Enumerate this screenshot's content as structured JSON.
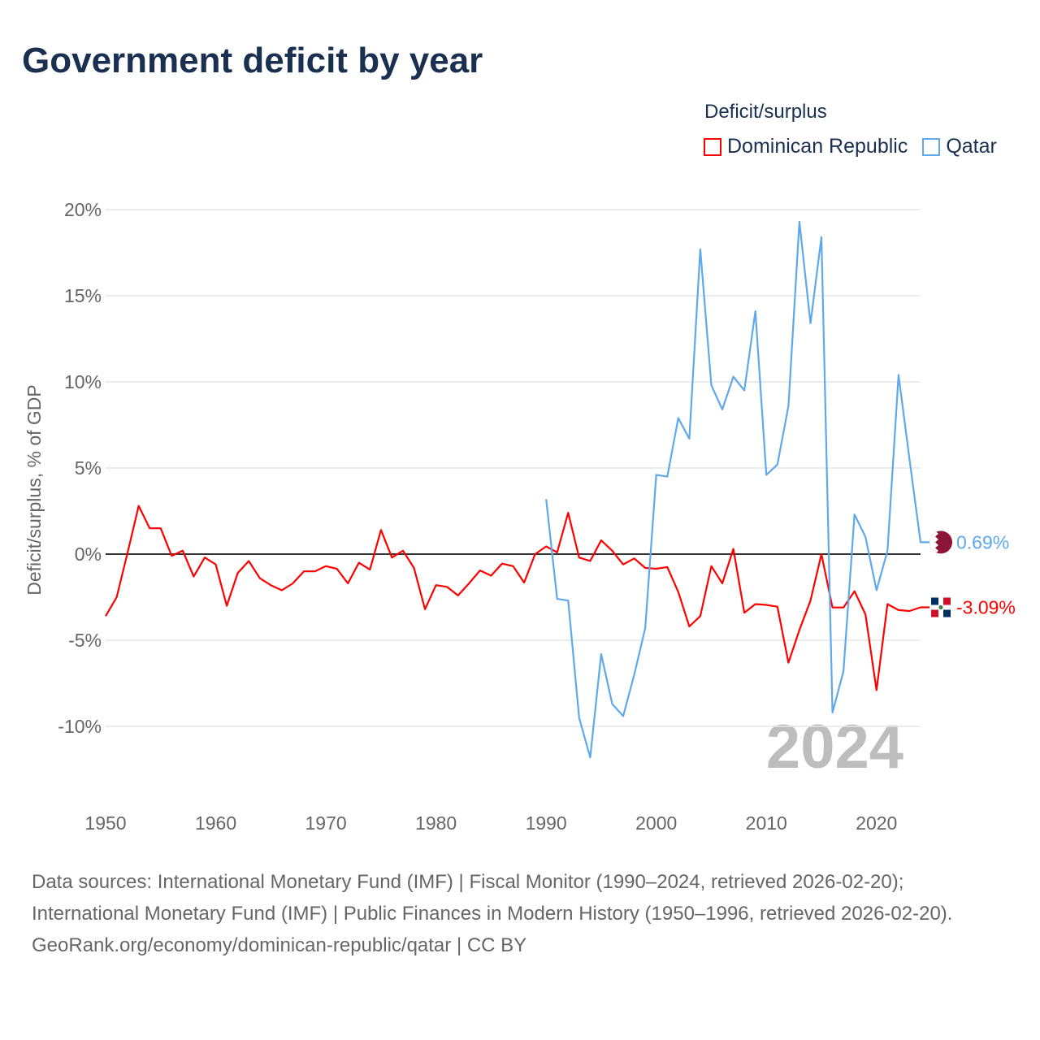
{
  "title": "Government deficit by year",
  "legend": {
    "title": "Deficit/surplus"
  },
  "colors": {
    "dominican_republic": "#ff0000",
    "qatar": "#5ea8ec",
    "zero_line": "#333333",
    "grid": "#e6e6e6"
  },
  "year_watermark": "2024",
  "chart_data": {
    "type": "line",
    "title": "Government deficit by year",
    "xlabel": "",
    "ylabel": "Deficit/surplus, % of GDP",
    "xlim": [
      1950,
      2024
    ],
    "ylim": [
      -12,
      20
    ],
    "x_ticks": [
      1950,
      1960,
      1970,
      1980,
      1990,
      2000,
      2010,
      2020
    ],
    "x_tick_labels": [
      "1950",
      "1960",
      "1970",
      "1980",
      "1990",
      "2000",
      "2010",
      "2020"
    ],
    "y_ticks": [
      20,
      15,
      10,
      5,
      0,
      -5,
      -10
    ],
    "y_tick_labels": [
      "20%",
      "15%",
      "10%",
      "5%",
      "0%",
      "-5%",
      "-10%"
    ],
    "grid": true,
    "legend_position": "top-right",
    "series": [
      {
        "name": "Dominican Republic",
        "color": "#ff0000",
        "start_year": 1950,
        "end_label": "-3.09%",
        "values": [
          -3.6,
          -2.5,
          0.1,
          2.8,
          1.5,
          1.5,
          -0.1,
          0.2,
          -1.3,
          -0.2,
          -0.6,
          -3.0,
          -1.1,
          -0.4,
          -1.4,
          -1.8,
          -2.1,
          -1.7,
          -1.0,
          -1.0,
          -0.7,
          -0.85,
          -1.7,
          -0.5,
          -0.9,
          1.4,
          -0.2,
          0.2,
          -0.8,
          -3.2,
          -1.8,
          -1.9,
          -2.4,
          -1.7,
          -0.95,
          -1.25,
          -0.55,
          -0.7,
          -1.65,
          0.0,
          0.45,
          0.1,
          2.4,
          -0.2,
          -0.4,
          0.8,
          0.2,
          -0.6,
          -0.25,
          -0.8,
          -0.85,
          -0.75,
          -2.2,
          -4.2,
          -3.6,
          -0.7,
          -1.7,
          0.3,
          -3.4,
          -2.9,
          -2.95,
          -3.05,
          -6.3,
          -4.4,
          -2.7,
          0.0,
          -3.1,
          -3.1,
          -2.15,
          -3.5,
          -7.9,
          -2.9,
          -3.25,
          -3.3,
          -3.09
        ]
      },
      {
        "name": "Qatar",
        "color": "#5ea8ec",
        "start_year": 1990,
        "end_label": "0.69%",
        "values": [
          3.2,
          -2.6,
          -2.7,
          -9.5,
          -11.8,
          -5.8,
          -8.7,
          -9.4,
          -7.0,
          -4.3,
          4.6,
          4.5,
          7.9,
          6.7,
          17.7,
          9.8,
          8.4,
          10.3,
          9.5,
          14.1,
          4.6,
          5.2,
          8.6,
          19.3,
          13.4,
          18.4,
          -9.2,
          -6.8,
          2.3,
          1.0,
          -2.1,
          0.2,
          10.4,
          5.5,
          0.69
        ]
      }
    ]
  },
  "footer": {
    "sources": "Data sources: International Monetary Fund (IMF) | Fiscal Monitor (1990–2024, retrieved 2026-02-20); International Monetary Fund (IMF) | Public Finances in Modern History (1950–1996, retrieved 2026-02-20).",
    "attribution": "GeoRank.org/economy/dominican-republic/qatar | CC BY"
  }
}
